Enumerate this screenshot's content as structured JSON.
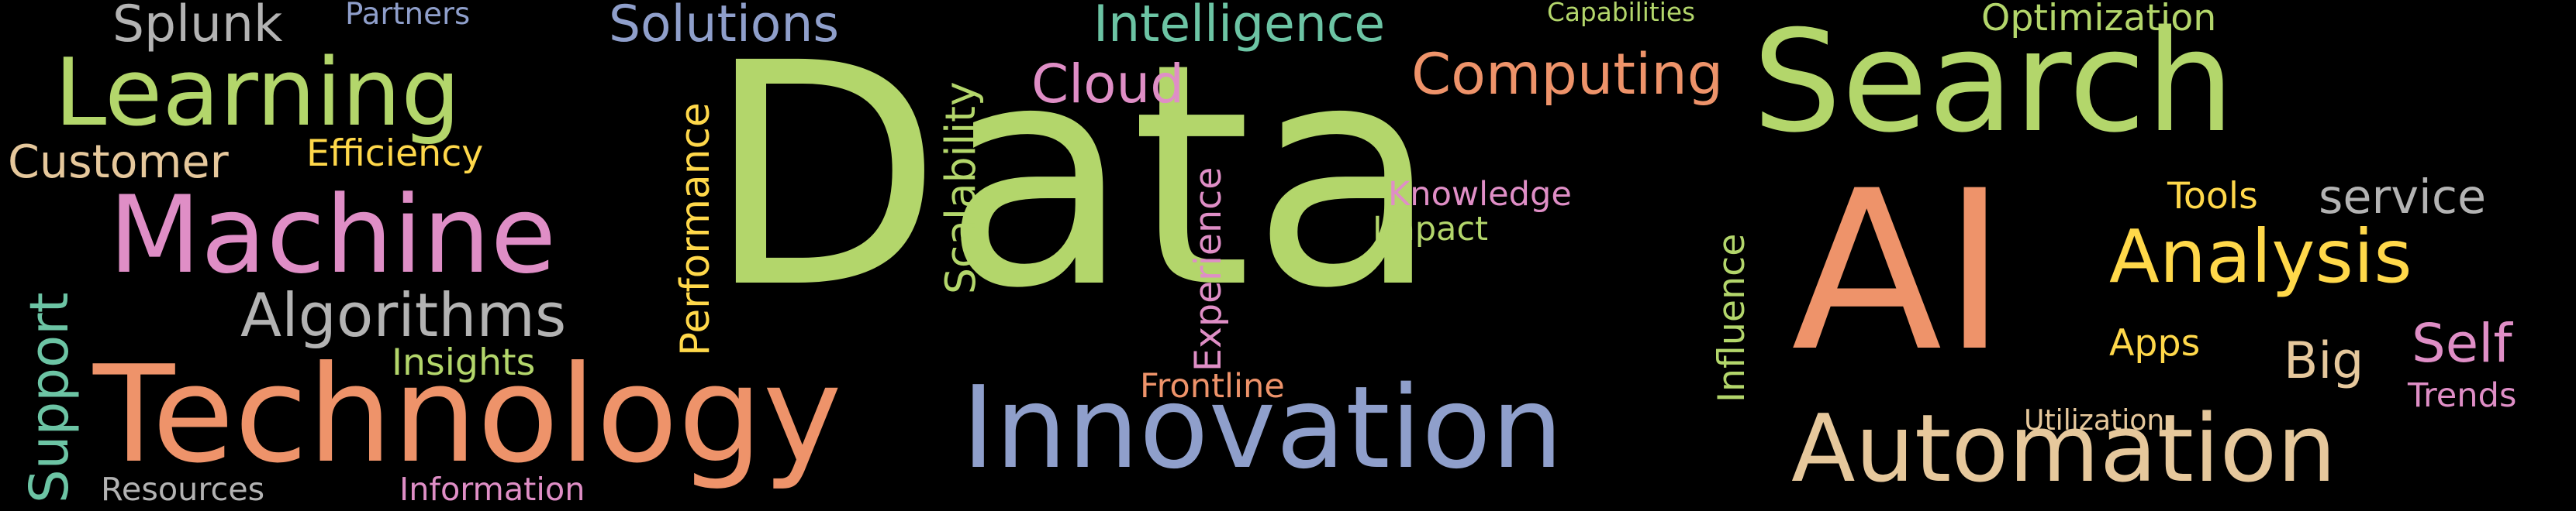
{
  "words": [
    {
      "text": "Data",
      "color": "#b3d66b"
    },
    {
      "text": "Search",
      "color": "#b3d66b"
    },
    {
      "text": "AI",
      "color": "#ee936a"
    },
    {
      "text": "Technology",
      "color": "#ee936a"
    },
    {
      "text": "Innovation",
      "color": "#8f9fcb"
    },
    {
      "text": "Automation",
      "color": "#e6c89c"
    },
    {
      "text": "Machine",
      "color": "#df8ec6"
    },
    {
      "text": "Learning",
      "color": "#b3d66b"
    },
    {
      "text": "Analysis",
      "color": "#ffd84a"
    },
    {
      "text": "Algorithms",
      "color": "#b3b3b3"
    },
    {
      "text": "Computing",
      "color": "#ee936a"
    },
    {
      "text": "Intelligence",
      "color": "#6cc4a4"
    },
    {
      "text": "Solutions",
      "color": "#8f9fcb"
    },
    {
      "text": "Customer",
      "color": "#e6c89c"
    },
    {
      "text": "Cloud",
      "color": "#df8ec6"
    },
    {
      "text": "service",
      "color": "#b3b3b3"
    },
    {
      "text": "Splunk",
      "color": "#b3b3b3"
    },
    {
      "text": "Support",
      "color": "#6cc4a4"
    },
    {
      "text": "Big",
      "color": "#e6c89c"
    },
    {
      "text": "Self",
      "color": "#df8ec6"
    },
    {
      "text": "Efficiency",
      "color": "#ffd84a"
    },
    {
      "text": "Optimization",
      "color": "#b3d66b"
    },
    {
      "text": "Scalability",
      "color": "#b3d66b"
    },
    {
      "text": "Performance",
      "color": "#ffd84a"
    },
    {
      "text": "Knowledge",
      "color": "#df8ec6"
    },
    {
      "text": "Impact",
      "color": "#b3d66b"
    },
    {
      "text": "Experience",
      "color": "#df8ec6"
    },
    {
      "text": "Influence",
      "color": "#b3d66b"
    },
    {
      "text": "Insights",
      "color": "#b3d66b"
    },
    {
      "text": "Frontline",
      "color": "#ee936a"
    },
    {
      "text": "Tools",
      "color": "#ffd84a"
    },
    {
      "text": "Apps",
      "color": "#ffd84a"
    },
    {
      "text": "Trends",
      "color": "#df8ec6"
    },
    {
      "text": "Partners",
      "color": "#8f9fcb"
    },
    {
      "text": "Capabilities",
      "color": "#b3d66b"
    },
    {
      "text": "Utilization",
      "color": "#e6c89c"
    },
    {
      "text": "Resources",
      "color": "#b3b3b3"
    },
    {
      "text": "Information",
      "color": "#df8ec6"
    }
  ]
}
